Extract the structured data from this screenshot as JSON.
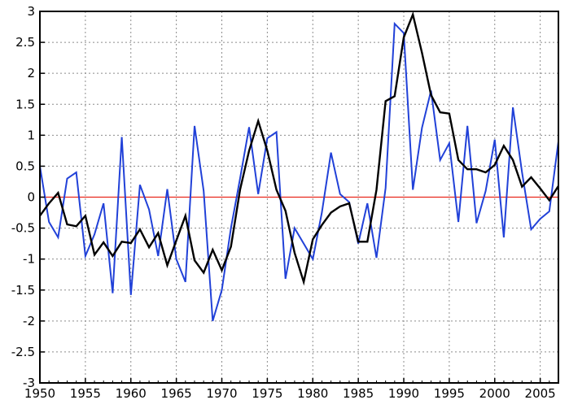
{
  "chart_data": {
    "type": "line",
    "title": "",
    "xlabel": "",
    "ylabel": "",
    "xlim": [
      1950,
      2007
    ],
    "ylim": [
      -3,
      3
    ],
    "grid": true,
    "legend": "none",
    "x_ticks": [
      1950,
      1955,
      1960,
      1965,
      1970,
      1975,
      1980,
      1985,
      1990,
      1995,
      2000,
      2005
    ],
    "x_tick_labels": [
      "1950",
      "1955",
      "1960",
      "1965",
      "1970",
      "1975",
      "1980",
      "1985",
      "1990",
      "1995",
      "2000",
      "2005"
    ],
    "y_ticks": [
      3,
      2.5,
      2,
      1.5,
      1,
      0.5,
      0,
      -0.5,
      -1,
      -1.5,
      -2,
      -2.5,
      -3
    ],
    "y_tick_labels": [
      "3",
      "2.5",
      "2",
      "1.5",
      "1",
      "0.5",
      "0",
      "-0.5",
      "-1",
      "-1.5",
      "-2",
      "-2.5",
      "-3"
    ],
    "reference_line": {
      "y": 0,
      "color": "#e8281e"
    },
    "x": [
      1950,
      1951,
      1952,
      1953,
      1954,
      1955,
      1956,
      1957,
      1958,
      1959,
      1960,
      1961,
      1962,
      1963,
      1964,
      1965,
      1966,
      1967,
      1968,
      1969,
      1970,
      1971,
      1972,
      1973,
      1974,
      1975,
      1976,
      1977,
      1978,
      1979,
      1980,
      1981,
      1982,
      1983,
      1984,
      1985,
      1986,
      1987,
      1988,
      1989,
      1990,
      1991,
      1992,
      1993,
      1994,
      1995,
      1996,
      1997,
      1998,
      1999,
      2000,
      2001,
      2002,
      2003,
      2004,
      2005,
      2006,
      2007
    ],
    "series": [
      {
        "color": "#2141d8",
        "values": [
          0.5,
          -0.4,
          -0.65,
          0.3,
          0.4,
          -0.95,
          -0.6,
          -0.1,
          -1.55,
          0.97,
          -1.58,
          0.2,
          -0.2,
          -0.95,
          0.13,
          -1.0,
          -1.37,
          1.15,
          0.1,
          -2.0,
          -1.5,
          -0.5,
          0.3,
          1.13,
          0.05,
          0.95,
          1.05,
          -1.32,
          -0.5,
          -0.75,
          -1.0,
          -0.25,
          0.72,
          0.05,
          -0.08,
          -0.75,
          -0.1,
          -0.98,
          0.15,
          2.8,
          2.65,
          0.12,
          1.12,
          1.72,
          0.6,
          0.87,
          -0.4,
          1.15,
          -0.42,
          0.1,
          0.93,
          -0.65,
          1.45,
          0.4,
          -0.52,
          -0.35,
          -0.23,
          0.9
        ]
      },
      {
        "color": "#000000",
        "values": [
          -0.3,
          -0.1,
          0.07,
          -0.44,
          -0.47,
          -0.3,
          -0.93,
          -0.73,
          -0.95,
          -0.72,
          -0.74,
          -0.52,
          -0.81,
          -0.58,
          -1.1,
          -0.7,
          -0.3,
          -1.02,
          -1.22,
          -0.85,
          -1.18,
          -0.8,
          0.12,
          0.75,
          1.23,
          0.75,
          0.12,
          -0.22,
          -0.9,
          -1.37,
          -0.68,
          -0.45,
          -0.25,
          -0.15,
          -0.1,
          -0.72,
          -0.72,
          0.12,
          1.55,
          1.63,
          2.58,
          2.95,
          2.33,
          1.65,
          1.37,
          1.35,
          0.6,
          0.45,
          0.45,
          0.4,
          0.52,
          0.83,
          0.6,
          0.17,
          0.32,
          0.14,
          -0.05,
          0.18
        ]
      }
    ]
  }
}
